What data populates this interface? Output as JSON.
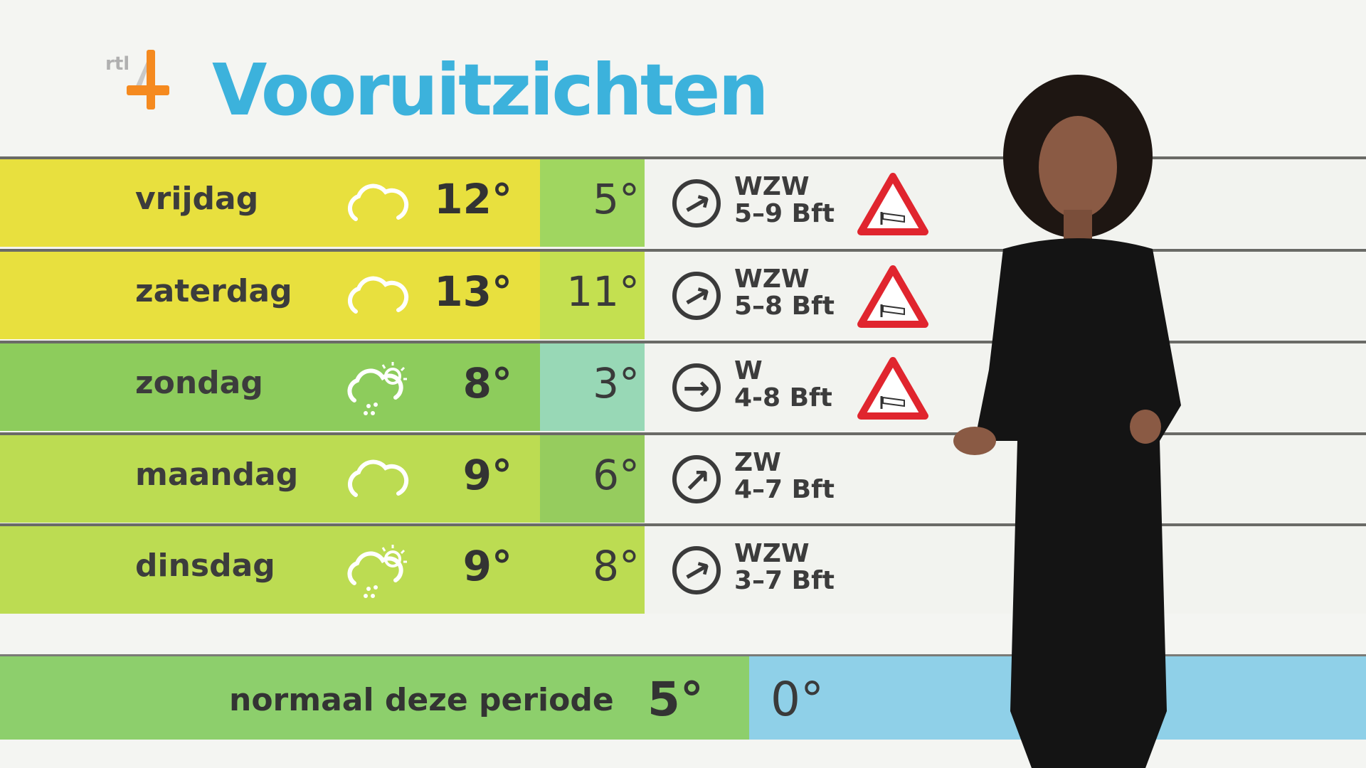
{
  "logo": {
    "text": "rtl 4",
    "colors": {
      "orange": "#f58a1f",
      "grey": "#b0b0b0"
    }
  },
  "title": "Vooruitzichten",
  "forecast": [
    {
      "day": "vrijdag",
      "icon": "cloud-icon",
      "high": "12°",
      "low": "5°",
      "wind_dir": "WZW",
      "wind_force": "5–9 Bft",
      "warning": true,
      "day_color": "#e8e03e",
      "low_color": "#a0d660",
      "rot": -30
    },
    {
      "day": "zaterdag",
      "icon": "cloud-icon",
      "high": "13°",
      "low": "11°",
      "wind_dir": "WZW",
      "wind_force": "5–8 Bft",
      "warning": true,
      "day_color": "#e8e03e",
      "low_color": "#c4e050",
      "rot": -30
    },
    {
      "day": "zondag",
      "icon": "sun-cloud-shower-icon",
      "high": "8°",
      "low": "3°",
      "wind_dir": "W",
      "wind_force": "4-8 Bft",
      "warning": true,
      "day_color": "#8dcc5c",
      "low_color": "#98d8b6",
      "rot": 0
    },
    {
      "day": "maandag",
      "icon": "cloud-icon",
      "high": "9°",
      "low": "6°",
      "wind_dir": "ZW",
      "wind_force": "4–7 Bft",
      "warning": false,
      "day_color": "#bcdc52",
      "low_color": "#96cc5e",
      "rot": -45
    },
    {
      "day": "dinsdag",
      "icon": "sun-cloud-shower-icon",
      "high": "9°",
      "low": "8°",
      "wind_dir": "WZW",
      "wind_force": "3–7 Bft",
      "warning": false,
      "day_color": "#bcdc52",
      "low_color": "#bcdc52",
      "rot": -30
    }
  ],
  "normal": {
    "label": "normaal deze periode",
    "high": "5°",
    "low": "0°",
    "high_color": "#8dcf6c",
    "low_color": "#8fd0e8"
  }
}
